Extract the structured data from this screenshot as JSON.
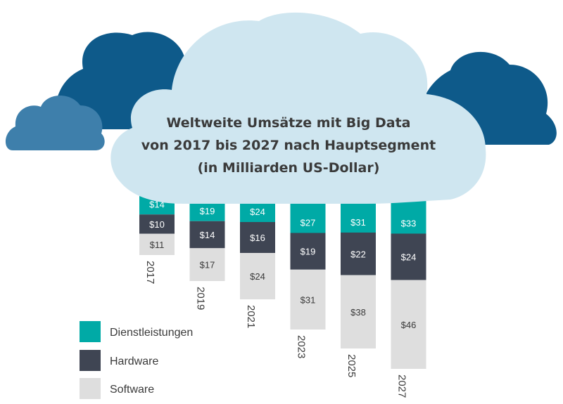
{
  "colors": {
    "dienstleistungen": "#00aaa6",
    "hardware": "#3f4553",
    "software": "#dedede",
    "cloud_light": "#cfe6f0",
    "cloud_dark": "#0e5a8a",
    "cloud_mid": "#3e7fab"
  },
  "chart_data": {
    "type": "bar",
    "stacked": true,
    "title": "Weltweite Umsätze mit Big Data von 2017 bis 2027 nach Hauptsegment (in Milliarden US-Dollar)",
    "title_lines": [
      "Weltweite Umsätze mit Big Data",
      "von 2017 bis 2027 nach Hauptsegment",
      "(in Milliarden US-Dollar)"
    ],
    "categories": [
      "2017",
      "2019",
      "2021",
      "2023",
      "2025",
      "2027"
    ],
    "series": [
      {
        "name": "Dienstleistungen",
        "values": [
          14,
          19,
          24,
          27,
          31,
          33
        ],
        "labels": [
          "$14",
          "$19",
          "$24",
          "$27",
          "$31",
          "$33"
        ]
      },
      {
        "name": "Hardware",
        "values": [
          10,
          14,
          16,
          19,
          22,
          24
        ],
        "labels": [
          "$10",
          "$14",
          "$16",
          "$19",
          "$22",
          "$24"
        ]
      },
      {
        "name": "Software",
        "values": [
          11,
          17,
          24,
          31,
          38,
          46
        ],
        "labels": [
          "$11",
          "$17",
          "$24",
          "$31",
          "$38",
          "$46"
        ]
      }
    ],
    "legend_position": "bottom-left",
    "grid": false
  }
}
